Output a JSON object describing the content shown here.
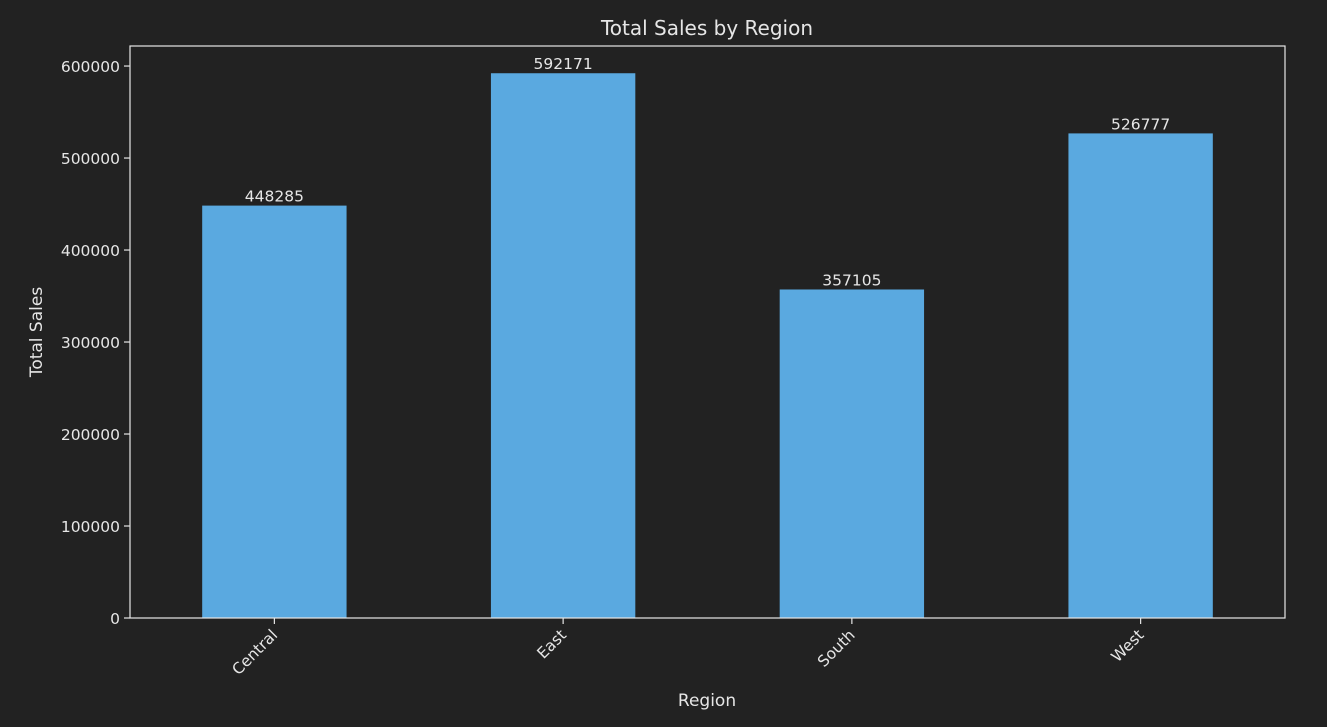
{
  "chart_data": {
    "type": "bar",
    "title": "Total Sales by Region",
    "xlabel": "Region",
    "ylabel": "Total Sales",
    "categories": [
      "Central",
      "East",
      "South",
      "West"
    ],
    "values": [
      448285,
      592171,
      357105,
      526777
    ],
    "data_labels": [
      "448285",
      "592171",
      "357105",
      "526777"
    ],
    "ylim": [
      0,
      621780
    ],
    "yticks": [
      0,
      100000,
      200000,
      300000,
      400000,
      500000,
      600000
    ],
    "ytick_labels": [
      "0",
      "100000",
      "200000",
      "300000",
      "400000",
      "500000",
      "600000"
    ],
    "grid": false,
    "legend": "none",
    "x_tick_rotation_deg": 45
  },
  "colors": {
    "background": "#222222",
    "bar": "#5aa9e0",
    "axis": "#e6e6e6",
    "text": "#e6e6e6"
  }
}
